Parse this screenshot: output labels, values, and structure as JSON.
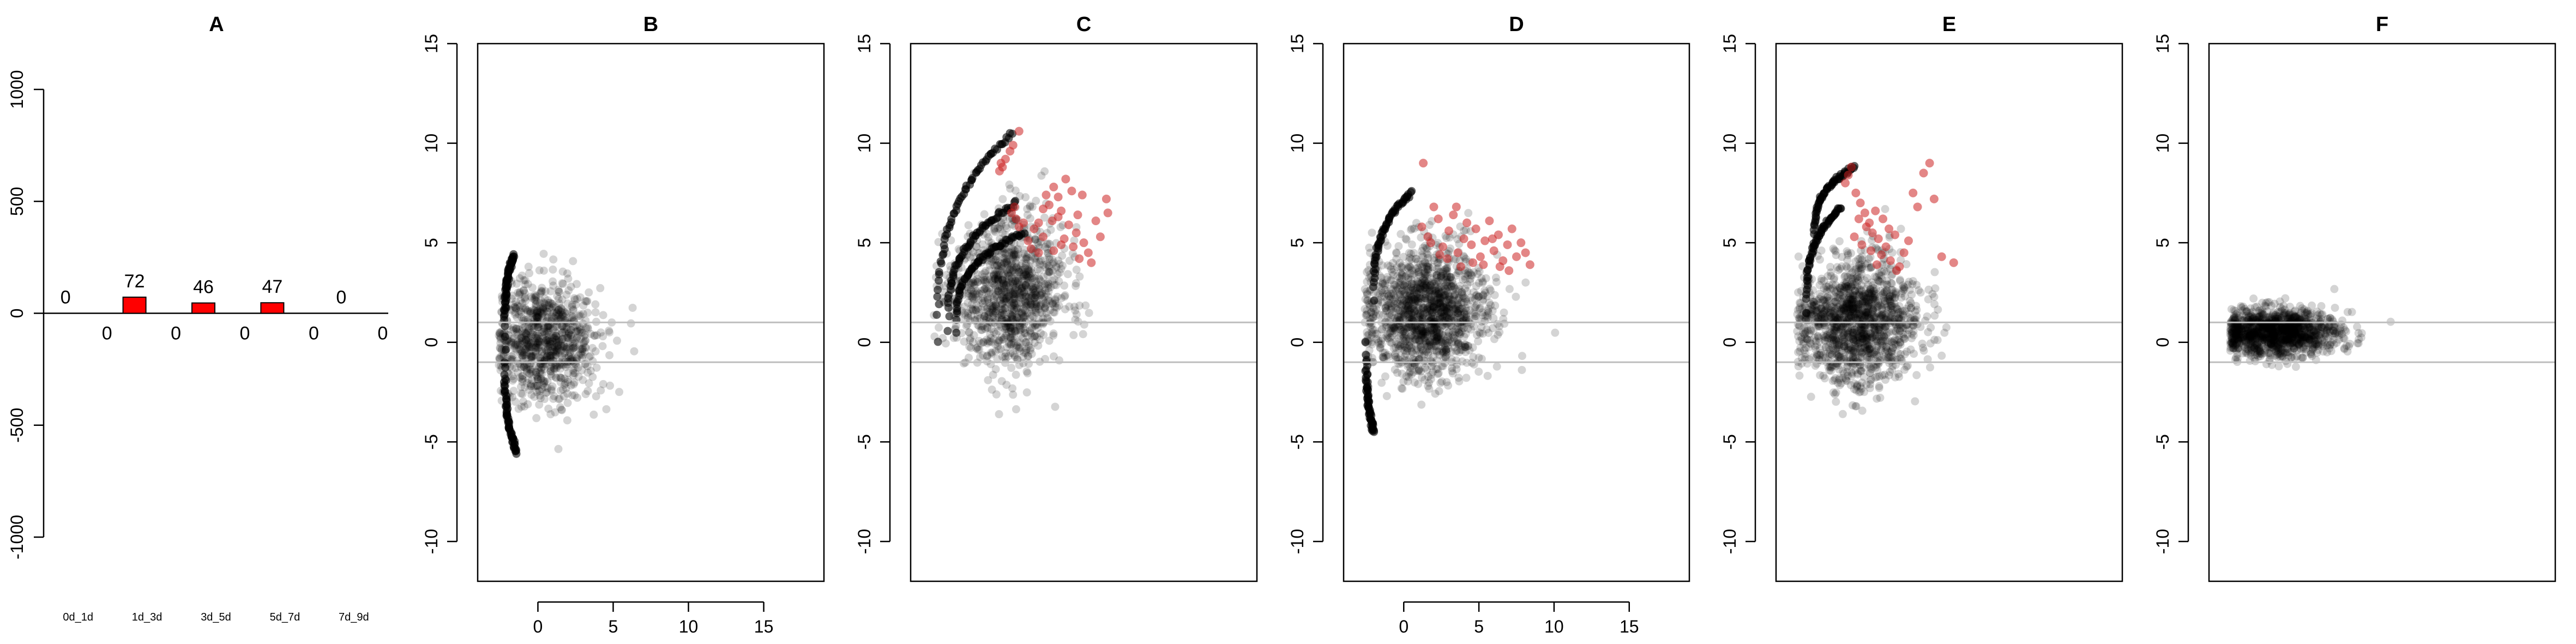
{
  "colors": {
    "up": "#cc0000",
    "down": "#cc0000",
    "bar_fill": "#ff0000",
    "point": "#000000",
    "highlight": "#cc2222",
    "threshold": "#bebebe"
  },
  "chart_data": [
    {
      "panel": "A",
      "type": "bar",
      "title": "A",
      "categories": [
        "0d_1d",
        "1d_3d",
        "3d_5d",
        "5d_7d",
        "7d_9d"
      ],
      "series": [
        {
          "values": [
            0,
            72,
            46,
            47,
            0
          ]
        },
        {
          "values": [
            0,
            0,
            0,
            0,
            0
          ]
        }
      ],
      "ylim": [
        -1000,
        1000
      ],
      "yticks": [
        "-1000",
        "-500",
        "0",
        "500",
        "1000"
      ]
    },
    {
      "panel": "B",
      "type": "scatter",
      "title": "B",
      "xlim": [
        -4,
        19
      ],
      "ylim": [
        -12,
        15
      ],
      "xticks": [
        "0",
        "5",
        "10",
        "15"
      ],
      "yticks": [
        "-10",
        "-5",
        "0",
        "5",
        "10",
        "15"
      ],
      "thresholds": [
        1,
        -1
      ],
      "cloud": {
        "cx": 0.5,
        "cy": 0,
        "n": 900,
        "sdx": 1.8,
        "sdy": 1.6
      },
      "arcs": [
        {
          "x0": -2.2,
          "y0": 0.3,
          "x1": -1.6,
          "y1": 4.4
        },
        {
          "x0": -2.2,
          "y0": -0.4,
          "x1": -1.4,
          "y1": -5.5
        }
      ],
      "highlight": []
    },
    {
      "panel": "C",
      "type": "scatter",
      "title": "C",
      "xlim": [
        -4,
        19
      ],
      "ylim": [
        -12,
        15
      ],
      "xticks": [],
      "yticks": [
        "-10",
        "-5",
        "0",
        "5",
        "10",
        "15"
      ],
      "thresholds": [
        1,
        -1
      ],
      "cloud": {
        "cx": 2.5,
        "cy": 2.5,
        "n": 1100,
        "sdx": 1.8,
        "sdy": 2.0
      },
      "arcs": [
        {
          "x0": -2.2,
          "y0": 0,
          "x1": 2.8,
          "y1": 10.5
        },
        {
          "x0": -1.5,
          "y0": 0.5,
          "x1": 3.0,
          "y1": 7.0
        },
        {
          "x0": -1.0,
          "y0": 0.5,
          "x1": 3.5,
          "y1": 5.5
        }
      ],
      "highlight": [
        [
          2.0,
          9.0
        ],
        [
          2.3,
          9.2
        ],
        [
          2.6,
          9.6
        ],
        [
          2.1,
          8.8
        ],
        [
          1.9,
          8.6
        ],
        [
          2.8,
          9.9
        ],
        [
          3.2,
          10.6
        ],
        [
          2.7,
          6.5
        ],
        [
          2.9,
          6.8
        ],
        [
          3.0,
          6.2
        ],
        [
          3.2,
          5.8
        ],
        [
          3.8,
          5.1
        ],
        [
          4.2,
          5.7
        ],
        [
          4.5,
          6.0
        ],
        [
          4.8,
          5.3
        ],
        [
          5.0,
          7.4
        ],
        [
          5.2,
          6.9
        ],
        [
          5.5,
          7.8
        ],
        [
          5.8,
          7.3
        ],
        [
          6.0,
          6.6
        ],
        [
          6.2,
          5.2
        ],
        [
          6.5,
          5.9
        ],
        [
          6.8,
          4.8
        ],
        [
          7.0,
          5.5
        ],
        [
          7.2,
          4.2
        ],
        [
          7.5,
          5.0
        ],
        [
          7.8,
          4.5
        ],
        [
          8.0,
          4.0
        ],
        [
          8.3,
          6.1
        ],
        [
          8.6,
          5.3
        ],
        [
          9.0,
          7.2
        ],
        [
          9.1,
          6.5
        ],
        [
          4.0,
          4.7
        ],
        [
          4.5,
          4.5
        ],
        [
          5.5,
          4.6
        ],
        [
          6.0,
          4.9
        ],
        [
          5.8,
          6.3
        ],
        [
          6.3,
          8.2
        ],
        [
          6.7,
          7.6
        ],
        [
          7.4,
          7.4
        ],
        [
          7.1,
          6.4
        ],
        [
          3.5,
          6.0
        ],
        [
          4.8,
          6.7
        ],
        [
          5.4,
          6.1
        ]
      ],
      "highlight_counts": [
        72
      ]
    },
    {
      "panel": "D",
      "type": "scatter",
      "title": "D",
      "xlim": [
        -4,
        19
      ],
      "ylim": [
        -12,
        15
      ],
      "xticks": [
        "0",
        "5",
        "10",
        "15"
      ],
      "yticks": [
        "-10",
        "-5",
        "0",
        "5",
        "10",
        "15"
      ],
      "thresholds": [
        1,
        -1
      ],
      "cloud": {
        "cx": 1.5,
        "cy": 1.5,
        "n": 1400,
        "sdx": 2.0,
        "sdy": 1.7
      },
      "arcs": [
        {
          "x0": -2.0,
          "y0": 2.0,
          "x1": 0.5,
          "y1": 7.5
        },
        {
          "x0": -2.5,
          "y0": 0,
          "x1": -2.0,
          "y1": -4.5
        }
      ],
      "highlight": [
        [
          1.2,
          5.8
        ],
        [
          1.6,
          5.3
        ],
        [
          2.0,
          6.8
        ],
        [
          2.3,
          6.2
        ],
        [
          2.6,
          4.8
        ],
        [
          3.0,
          5.6
        ],
        [
          3.3,
          6.4
        ],
        [
          3.6,
          4.5
        ],
        [
          4.0,
          5.2
        ],
        [
          4.2,
          6.0
        ],
        [
          4.5,
          4.9
        ],
        [
          4.8,
          5.7
        ],
        [
          5.1,
          4.3
        ],
        [
          5.4,
          5.1
        ],
        [
          5.7,
          6.1
        ],
        [
          6.0,
          4.6
        ],
        [
          6.3,
          5.4
        ],
        [
          6.6,
          4.1
        ],
        [
          6.9,
          4.9
        ],
        [
          7.2,
          5.7
        ],
        [
          7.5,
          4.3
        ],
        [
          7.8,
          5.0
        ],
        [
          8.1,
          4.5
        ],
        [
          8.4,
          3.9
        ],
        [
          2.4,
          4.4
        ],
        [
          2.9,
          4.2
        ],
        [
          3.8,
          3.8
        ],
        [
          4.6,
          4.0
        ],
        [
          5.3,
          3.9
        ],
        [
          5.9,
          5.2
        ],
        [
          6.4,
          3.8
        ],
        [
          7.0,
          3.6
        ],
        [
          1.8,
          5.0
        ],
        [
          3.5,
          6.8
        ],
        [
          1.3,
          9.0
        ]
      ],
      "highlight_counts": [
        46
      ]
    },
    {
      "panel": "E",
      "type": "scatter",
      "title": "E",
      "xlim": [
        -4,
        19
      ],
      "ylim": [
        -12,
        15
      ],
      "xticks": [],
      "yticks": [
        "-10",
        "-5",
        "0",
        "5",
        "10",
        "15"
      ],
      "thresholds": [
        1,
        -1
      ],
      "cloud": {
        "cx": 1.5,
        "cy": 1.0,
        "n": 1400,
        "sdx": 2.0,
        "sdy": 1.6
      },
      "arcs": [
        {
          "x0": -1.5,
          "y0": 5.0,
          "x1": 1.2,
          "y1": 8.8
        },
        {
          "x0": -2.0,
          "y0": 1.5,
          "x1": 0.3,
          "y1": 6.8
        }
      ],
      "highlight": [
        [
          1.0,
          8.8
        ],
        [
          0.8,
          8.4
        ],
        [
          0.6,
          8.0
        ],
        [
          1.3,
          7.5
        ],
        [
          1.6,
          7.0
        ],
        [
          1.9,
          6.5
        ],
        [
          1.5,
          6.2
        ],
        [
          2.2,
          6.0
        ],
        [
          2.4,
          5.5
        ],
        [
          2.0,
          5.8
        ],
        [
          2.6,
          6.6
        ],
        [
          2.8,
          5.2
        ],
        [
          3.0,
          4.4
        ],
        [
          3.3,
          4.8
        ],
        [
          3.6,
          4.1
        ],
        [
          3.9,
          5.4
        ],
        [
          4.2,
          3.8
        ],
        [
          4.5,
          4.5
        ],
        [
          4.8,
          5.1
        ],
        [
          5.1,
          7.5
        ],
        [
          5.4,
          6.8
        ],
        [
          5.8,
          8.5
        ],
        [
          6.2,
          9.0
        ],
        [
          6.5,
          7.2
        ],
        [
          7.0,
          4.3
        ],
        [
          7.8,
          4.0
        ],
        [
          1.2,
          5.3
        ],
        [
          1.7,
          4.9
        ],
        [
          2.3,
          4.6
        ],
        [
          3.1,
          6.2
        ],
        [
          4.0,
          3.6
        ],
        [
          3.5,
          5.7
        ],
        [
          2.7,
          3.9
        ]
      ],
      "highlight_counts": [
        47
      ]
    },
    {
      "panel": "F",
      "type": "scatter",
      "title": "F",
      "xlim": [
        -4,
        19
      ],
      "ylim": [
        -12,
        15
      ],
      "xticks": [],
      "yticks": [
        "-10",
        "-5",
        "0",
        "5",
        "10",
        "15"
      ],
      "thresholds": [
        1,
        -1
      ],
      "cloud": {
        "cx": 0.5,
        "cy": 0.5,
        "n": 1300,
        "sdx": 2.0,
        "sdy": 0.6
      },
      "arcs": [],
      "highlight": []
    }
  ]
}
